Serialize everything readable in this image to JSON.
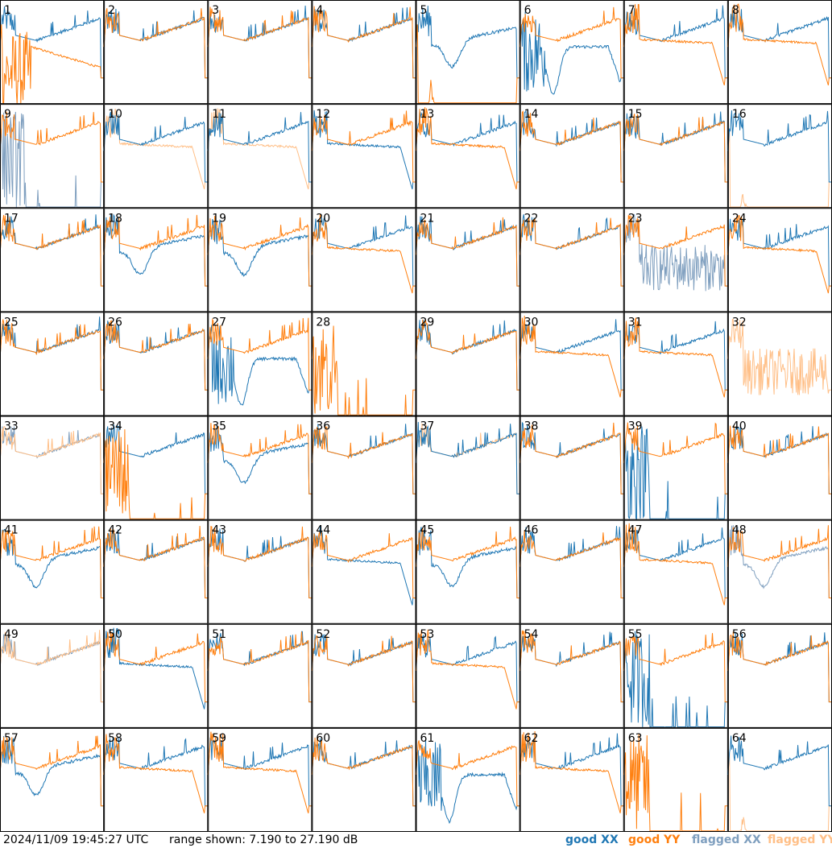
{
  "timestamp": "2024/11/09 19:45:27 UTC",
  "range_text": "range shown: 7.190 to 27.190 dB",
  "legend": [
    {
      "label": "good XX",
      "color": "#1f77b4"
    },
    {
      "label": "good YY",
      "color": "#ff7f0e"
    },
    {
      "label": "flagged XX",
      "color": "#7f9fbf"
    },
    {
      "label": "flagged YY",
      "color": "#ffbf87"
    }
  ],
  "chart_data": {
    "type": "line",
    "title": "",
    "ylabel": "dB",
    "ylim": [
      7.19,
      27.19
    ],
    "grid": false,
    "legend_placement": "bottom-right",
    "panel_labels": [
      "1",
      "2",
      "3",
      "4",
      "5",
      "6",
      "7",
      "8",
      "9",
      "10",
      "11",
      "12",
      "13",
      "14",
      "15",
      "16",
      "17",
      "18",
      "19",
      "20",
      "21",
      "22",
      "23",
      "24",
      "25",
      "26",
      "27",
      "28",
      "29",
      "30",
      "31",
      "32",
      "33",
      "34",
      "35",
      "36",
      "37",
      "38",
      "39",
      "40",
      "41",
      "42",
      "43",
      "44",
      "45",
      "46",
      "47",
      "48",
      "49",
      "50",
      "51",
      "52",
      "53",
      "54",
      "55",
      "56",
      "57",
      "58",
      "59",
      "60",
      "61",
      "62",
      "63",
      "64"
    ],
    "series": [
      {
        "name": "good XX",
        "color": "#1f77b4"
      },
      {
        "name": "good YY",
        "color": "#ff7f0e"
      },
      {
        "name": "flagged XX",
        "color": "#7f9fbf"
      },
      {
        "name": "flagged YY",
        "color": "#ffbf87"
      }
    ],
    "panels": {
      "1": {
        "xx": "std",
        "yy": "dip_low"
      },
      "2": {
        "xx": "std",
        "yy": "std"
      },
      "3": {
        "xx": "std",
        "yy": "std"
      },
      "4": {
        "xx": "std",
        "yy": "std"
      },
      "5": {
        "xx": "dip",
        "yy": "spike_small"
      },
      "6": {
        "xx": "deepdip",
        "yy": "std"
      },
      "7": {
        "xx": "std",
        "yy": "lowdrop"
      },
      "8": {
        "xx": "std",
        "yy": "lowdrop"
      },
      "9": {
        "xx_flag": "spikes",
        "yy": "std"
      },
      "10": {
        "xx": "std",
        "yy_flag": "lowdrop"
      },
      "11": {
        "xx": "std",
        "yy_flag": "lowdrop"
      },
      "12": {
        "xx": "lowdrop",
        "yy": "std"
      },
      "13": {
        "xx": "std",
        "yy": "lowdrop"
      },
      "14": {
        "xx": "std",
        "yy": "std"
      },
      "15": {
        "xx": "std",
        "yy": "std"
      },
      "16": {
        "xx": "std",
        "yy_flag": "spike_small"
      },
      "17": {
        "xx": "std",
        "yy": "std"
      },
      "18": {
        "xx": "dip",
        "yy": "std"
      },
      "19": {
        "xx": "dip",
        "yy": "std"
      },
      "20": {
        "xx": "std",
        "yy": "lowdrop"
      },
      "21": {
        "xx": "std",
        "yy": "std"
      },
      "22": {
        "xx": "std",
        "yy": "std"
      },
      "23": {
        "xx_flag": "noise",
        "yy": "std"
      },
      "24": {
        "xx": "std",
        "yy": "lowdrop"
      },
      "25": {
        "xx": "std",
        "yy": "std"
      },
      "26": {
        "xx": "std",
        "yy": "std"
      },
      "27": {
        "xx": "deepdip",
        "yy": "std"
      },
      "28": {
        "yy": "spikes"
      },
      "29": {
        "xx": "std",
        "yy": "std"
      },
      "30": {
        "xx": "std",
        "yy": "lowdrop"
      },
      "31": {
        "xx": "std",
        "yy": "lowdrop"
      },
      "32": {
        "yy_flag": "noise"
      },
      "33": {
        "xx_flag": "std",
        "yy_flag": "std"
      },
      "34": {
        "xx": "std",
        "yy": "spikes"
      },
      "35": {
        "xx": "dip",
        "yy": "std"
      },
      "36": {
        "xx": "std",
        "yy": "std"
      },
      "37": {
        "xx": "std",
        "yy_flag": "std"
      },
      "38": {
        "xx": "std",
        "yy": "std"
      },
      "39": {
        "xx": "spikes",
        "yy": "std"
      },
      "40": {
        "xx": "std",
        "yy": "std"
      },
      "41": {
        "xx": "dip",
        "yy": "std"
      },
      "42": {
        "xx": "std",
        "yy": "std"
      },
      "43": {
        "xx": "std",
        "yy": "std"
      },
      "44": {
        "xx": "lowdrop",
        "yy": "std"
      },
      "45": {
        "xx": "dip",
        "yy": "std"
      },
      "46": {
        "xx": "std",
        "yy": "std"
      },
      "47": {
        "xx": "std",
        "yy": "lowdrop"
      },
      "48": {
        "xx_flag": "dip",
        "yy": "std"
      },
      "49": {
        "xx_flag": "std",
        "yy_flag": "std"
      },
      "50": {
        "xx": "lowdrop",
        "yy": "std"
      },
      "51": {
        "xx": "std",
        "yy": "std"
      },
      "52": {
        "xx": "std",
        "yy": "std"
      },
      "53": {
        "xx": "std",
        "yy": "lowdrop"
      },
      "54": {
        "xx": "std",
        "yy": "std"
      },
      "55": {
        "xx": "spikes",
        "yy": "std"
      },
      "56": {
        "xx": "std",
        "yy": "std"
      },
      "57": {
        "xx": "dip",
        "yy": "std"
      },
      "58": {
        "xx": "std",
        "yy": "lowdrop"
      },
      "59": {
        "xx": "std",
        "yy": "lowdrop"
      },
      "60": {
        "xx": "std",
        "yy": "std"
      },
      "61": {
        "xx": "deepdip",
        "yy": "std"
      },
      "62": {
        "xx": "std",
        "yy": "lowdrop"
      },
      "63": {
        "yy": "spikes"
      },
      "64": {
        "xx": "std",
        "yy_flag": "spike_small"
      }
    }
  }
}
